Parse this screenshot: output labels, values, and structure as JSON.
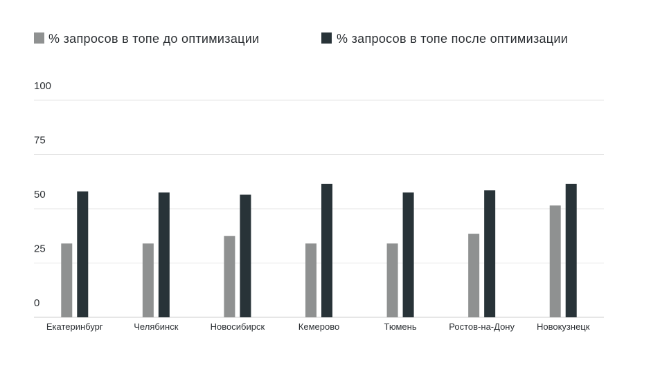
{
  "chart_data": {
    "type": "bar",
    "categories": [
      "Екатеринбург",
      "Челябинск",
      "Новосибирск",
      "Кемерово",
      "Тюмень",
      "Ростов-на-Дону",
      "Новокузнецк"
    ],
    "series": [
      {
        "name": "% запросов в топе до оптимизации",
        "color": "#8f9191",
        "values": [
          34,
          34,
          37.5,
          34,
          34,
          38.5,
          51.5
        ]
      },
      {
        "name": "% запросов в топе после оптимизации",
        "color": "#283338",
        "values": [
          58,
          57.5,
          56.5,
          61.5,
          57.5,
          58.5,
          61.5
        ]
      }
    ],
    "yticks": [
      "0",
      "25",
      "50",
      "75",
      "100"
    ],
    "ylim": [
      0,
      100
    ],
    "grid": true,
    "legend_position": "top-left"
  }
}
